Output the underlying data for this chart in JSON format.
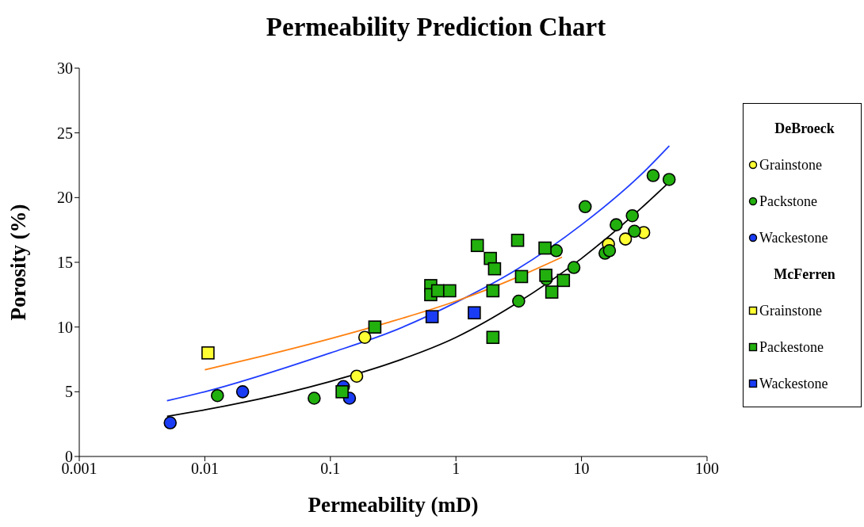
{
  "chart_data": {
    "type": "scatter",
    "title": "Permeability Prediction Chart",
    "xlabel": "Permeability (mD)",
    "ylabel": "Porosity (%)",
    "log": "x",
    "xlim": [
      0.001,
      100
    ],
    "xticks": [
      0.001,
      0.01,
      0.1,
      1,
      10,
      100
    ],
    "ylim": [
      0,
      30
    ],
    "yticks": [
      0,
      5,
      10,
      15,
      20,
      25,
      30
    ],
    "legend": "right",
    "annotations": [
      "DeBroeck",
      "McFerren"
    ],
    "series": [
      {
        "name": "Grainstone",
        "color": "#ffff33",
        "marker": "circle",
        "x": [
          0.188,
          0.162,
          16.4,
          22.4,
          31.3
        ],
        "values": [
          9.2,
          6.2,
          16.4,
          16.8,
          17.3
        ]
      },
      {
        "name": "Packstone",
        "color": "#22b00e",
        "marker": "circle",
        "x": [
          0.0126,
          0.0743,
          3.16,
          6.3,
          8.7,
          10.7,
          15.4,
          16.7,
          18.9,
          25.4,
          26.4,
          37.2,
          49.9,
          5.25
        ],
        "values": [
          4.7,
          4.5,
          12.0,
          15.9,
          14.6,
          19.3,
          15.7,
          15.9,
          17.9,
          18.6,
          17.4,
          21.7,
          21.4,
          13.7
        ]
      },
      {
        "name": "Wackestone",
        "color": "#1a3cf5",
        "marker": "circle",
        "x": [
          0.0053,
          0.02,
          0.127,
          0.142
        ],
        "values": [
          2.6,
          5.0,
          5.4,
          4.5
        ]
      },
      {
        "name": "Grainstone",
        "color": "#ffff33",
        "marker": "square",
        "x": [
          0.0106
        ],
        "values": [
          8.0
        ]
      },
      {
        "name": "Packestone",
        "color": "#22b00e",
        "marker": "square",
        "x": [
          0.124,
          0.226,
          1.48,
          3.1,
          5.12,
          1.88,
          2.03,
          0.63,
          0.63,
          0.716,
          0.892,
          1.97,
          3.33,
          5.2,
          7.18,
          5.8,
          1.97
        ],
        "values": [
          5.0,
          10.0,
          16.3,
          16.7,
          16.1,
          15.3,
          14.5,
          13.2,
          12.5,
          12.8,
          12.8,
          12.8,
          13.9,
          14.0,
          13.6,
          12.7,
          9.2
        ]
      },
      {
        "name": "Wackestone",
        "color": "#1a3cf5",
        "marker": "square",
        "x": [
          0.646,
          1.4
        ],
        "values": [
          10.8,
          11.1
        ]
      },
      {
        "type": "line",
        "color": "#000000",
        "x": [
          0.005,
          0.01,
          0.1,
          0.3,
          1,
          3,
          10,
          30,
          50
        ],
        "values": [
          3.1,
          3.6,
          5.8,
          7.2,
          9.2,
          11.8,
          15.3,
          19.2,
          21.2
        ]
      },
      {
        "type": "line",
        "color": "#1f3cff",
        "x": [
          0.005,
          0.01,
          0.1,
          0.3,
          1,
          3,
          10,
          30,
          50
        ],
        "values": [
          4.3,
          5.0,
          8.0,
          9.6,
          11.9,
          14.4,
          17.9,
          21.8,
          24.0
        ]
      },
      {
        "type": "line",
        "color": "#ff7f0e",
        "x": [
          0.01,
          0.03,
          0.1,
          0.3,
          1,
          3,
          7
        ],
        "values": [
          6.7,
          7.8,
          9.1,
          10.4,
          12.0,
          13.8,
          15.4
        ]
      }
    ]
  }
}
